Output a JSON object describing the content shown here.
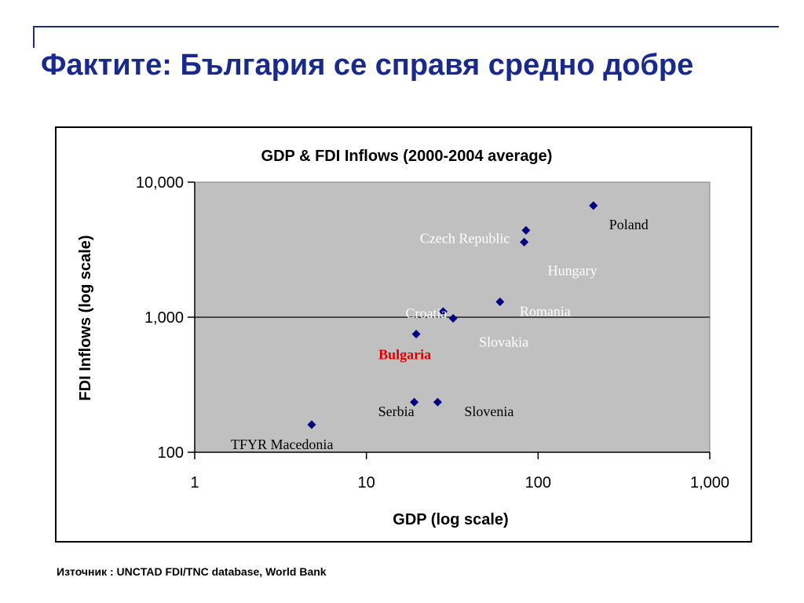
{
  "slide": {
    "title": "Фактите: България се справя средно добре",
    "source": "Източник : UNCTAD FDI/TNC database, World Bank"
  },
  "chart_data": {
    "type": "scatter",
    "title": "GDP & FDI Inflows (2000-2004 average)",
    "xlabel": "GDP (log scale)",
    "ylabel": "FDI Inflows (log scale)",
    "x_scale": "log",
    "y_scale": "log",
    "xlim": [
      1,
      1000
    ],
    "ylim": [
      100,
      10000
    ],
    "x_ticks": [
      "1",
      "10",
      "100",
      "1,000"
    ],
    "y_ticks": [
      "100",
      "1,000",
      "10,000"
    ],
    "x_tick_values": [
      1,
      10,
      100,
      1000
    ],
    "y_tick_values": [
      100,
      1000,
      10000
    ],
    "grid": "horizontal major gridlines",
    "plot_background": "#c0c0c0",
    "marker_color": "#000080",
    "highlight_color": "#e00000",
    "points": [
      {
        "label": "Poland",
        "x": 210,
        "y": 6700
      },
      {
        "label": "Czech Republic",
        "x": 85,
        "y": 4400
      },
      {
        "label": "Hungary",
        "x": 83,
        "y": 3600
      },
      {
        "label": "Romania",
        "x": 60,
        "y": 1300
      },
      {
        "label": "Croatia",
        "x": 28,
        "y": 1100
      },
      {
        "label": "Slovakia",
        "x": 32,
        "y": 980
      },
      {
        "label": "Bulgaria",
        "x": 19.5,
        "y": 750,
        "highlight": true
      },
      {
        "label": "Serbia",
        "x": 19,
        "y": 235
      },
      {
        "label": "Slovenia",
        "x": 26,
        "y": 235
      },
      {
        "label": "TFYR Macedonia",
        "x": 4.8,
        "y": 160
      }
    ]
  }
}
